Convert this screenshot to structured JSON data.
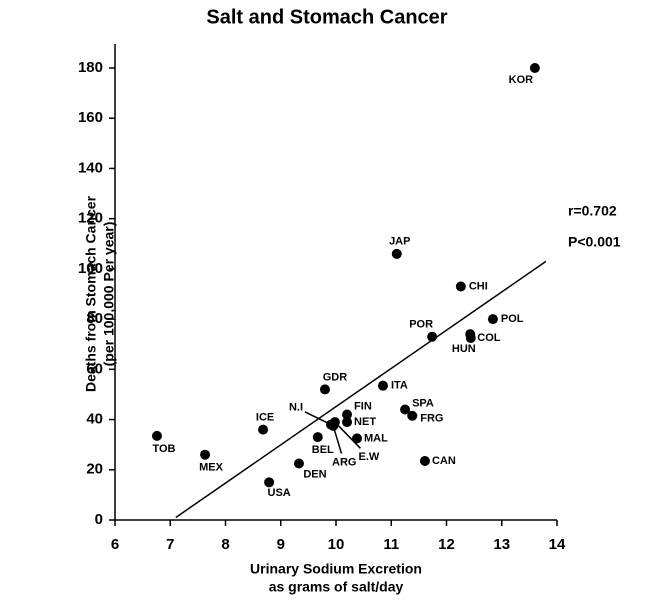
{
  "chart_data": {
    "type": "scatter",
    "title": "Salt and Stomach Cancer",
    "xlabel": [
      "Urinary Sodium Excretion",
      "as grams of salt/day"
    ],
    "ylabel": [
      "Deaths from Stomach Cancer",
      "(per 100,000 Per year)"
    ],
    "labels": [
      "KOR",
      "JAP",
      "CHI",
      "POL",
      "POR",
      "COL",
      "HUN",
      "GDR",
      "ITA",
      "SPA",
      "FRG",
      "FIN",
      "NET",
      "N.I",
      "E.W",
      "ARG",
      "BEL",
      "MAL",
      "ICE",
      "TOB",
      "MEX",
      "DEN",
      "CAN",
      "USA"
    ],
    "x": [
      13.6,
      11.1,
      12.26,
      12.84,
      11.74,
      12.43,
      12.44,
      9.8,
      10.85,
      11.25,
      11.38,
      10.2,
      10.2,
      9.91,
      9.98,
      9.95,
      9.67,
      10.38,
      8.68,
      6.76,
      7.63,
      9.33,
      11.61,
      8.79
    ],
    "values": [
      180,
      106,
      93,
      80,
      73,
      74,
      72.5,
      52,
      53.5,
      44,
      41.5,
      42,
      39,
      38,
      39,
      37.5,
      33,
      32.5,
      36,
      33.5,
      26,
      22.5,
      23.5,
      15
    ],
    "color": "#000000",
    "trendline": {
      "x": [
        7.1,
        13.8
      ],
      "y": [
        1,
        103
      ]
    },
    "annotations": [
      "r=0.702",
      "P<0.001"
    ],
    "xlim": [
      6,
      14
    ],
    "xticks": [
      6,
      7,
      8,
      9,
      10,
      11,
      12,
      13,
      14
    ],
    "ylim": [
      0,
      180
    ],
    "yticks": [
      0,
      20,
      40,
      60,
      80,
      100,
      120,
      140,
      160,
      180
    ]
  }
}
